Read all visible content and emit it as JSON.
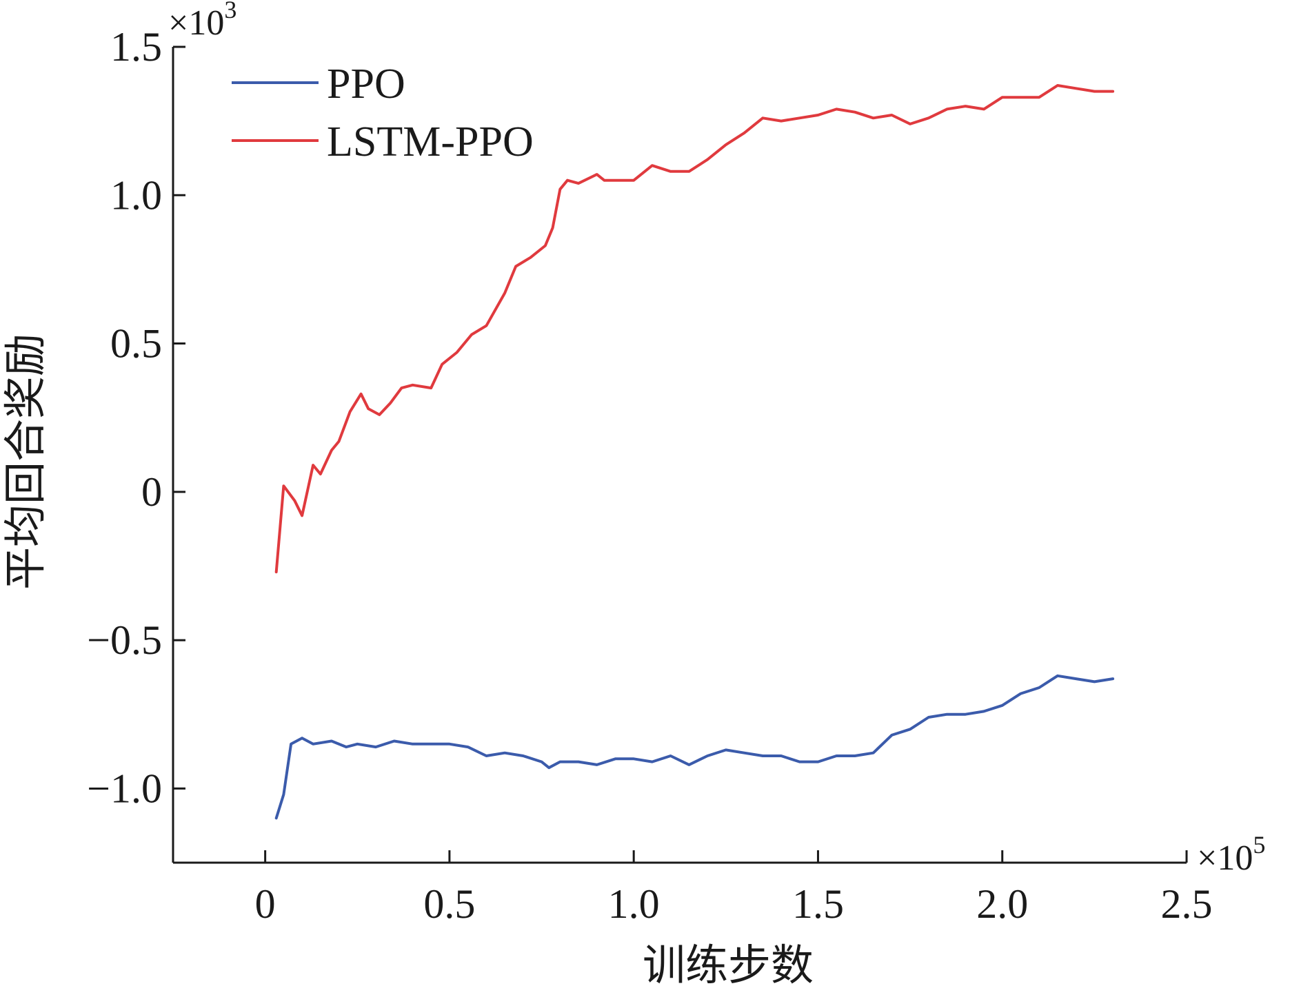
{
  "chart_data": {
    "type": "line",
    "title": "",
    "xlabel": "训练步数",
    "ylabel": "平均回合奖励",
    "x_multiplier": {
      "base": "×10",
      "exp": "5"
    },
    "y_multiplier": {
      "base": "×10",
      "exp": "3"
    },
    "xlim": [
      -0.25,
      2.5
    ],
    "ylim": [
      -1.25,
      1.5
    ],
    "xticks": [
      0,
      0.5,
      1.0,
      1.5,
      2.0,
      2.5
    ],
    "xtick_labels": [
      "0",
      "0.5",
      "1.0",
      "1.5",
      "2.0",
      "2.5"
    ],
    "yticks": [
      -1.0,
      -0.5,
      0,
      0.5,
      1.0,
      1.5
    ],
    "ytick_labels": [
      "−1.0",
      "−0.5",
      "0",
      "0.5",
      "1.0",
      "1.5"
    ],
    "grid": false,
    "legend_position": "top-left",
    "series": [
      {
        "name": "PPO",
        "color": "#3b5bab",
        "points": [
          [
            0.03,
            -1.1
          ],
          [
            0.05,
            -1.02
          ],
          [
            0.07,
            -0.85
          ],
          [
            0.1,
            -0.83
          ],
          [
            0.13,
            -0.85
          ],
          [
            0.18,
            -0.84
          ],
          [
            0.22,
            -0.86
          ],
          [
            0.25,
            -0.85
          ],
          [
            0.3,
            -0.86
          ],
          [
            0.35,
            -0.84
          ],
          [
            0.4,
            -0.85
          ],
          [
            0.45,
            -0.85
          ],
          [
            0.5,
            -0.85
          ],
          [
            0.55,
            -0.86
          ],
          [
            0.6,
            -0.89
          ],
          [
            0.65,
            -0.88
          ],
          [
            0.7,
            -0.89
          ],
          [
            0.75,
            -0.91
          ],
          [
            0.77,
            -0.93
          ],
          [
            0.8,
            -0.91
          ],
          [
            0.85,
            -0.91
          ],
          [
            0.9,
            -0.92
          ],
          [
            0.95,
            -0.9
          ],
          [
            1.0,
            -0.9
          ],
          [
            1.05,
            -0.91
          ],
          [
            1.1,
            -0.89
          ],
          [
            1.15,
            -0.92
          ],
          [
            1.2,
            -0.89
          ],
          [
            1.25,
            -0.87
          ],
          [
            1.3,
            -0.88
          ],
          [
            1.35,
            -0.89
          ],
          [
            1.4,
            -0.89
          ],
          [
            1.45,
            -0.91
          ],
          [
            1.5,
            -0.91
          ],
          [
            1.55,
            -0.89
          ],
          [
            1.6,
            -0.89
          ],
          [
            1.65,
            -0.88
          ],
          [
            1.7,
            -0.82
          ],
          [
            1.75,
            -0.8
          ],
          [
            1.8,
            -0.76
          ],
          [
            1.85,
            -0.75
          ],
          [
            1.9,
            -0.75
          ],
          [
            1.95,
            -0.74
          ],
          [
            2.0,
            -0.72
          ],
          [
            2.05,
            -0.68
          ],
          [
            2.1,
            -0.66
          ],
          [
            2.15,
            -0.62
          ],
          [
            2.2,
            -0.63
          ],
          [
            2.25,
            -0.64
          ],
          [
            2.3,
            -0.63
          ]
        ]
      },
      {
        "name": "LSTM-PPO",
        "color": "#e03a3e",
        "points": [
          [
            0.03,
            -0.27
          ],
          [
            0.05,
            0.02
          ],
          [
            0.08,
            -0.03
          ],
          [
            0.1,
            -0.08
          ],
          [
            0.13,
            0.09
          ],
          [
            0.15,
            0.06
          ],
          [
            0.18,
            0.14
          ],
          [
            0.2,
            0.17
          ],
          [
            0.23,
            0.27
          ],
          [
            0.26,
            0.33
          ],
          [
            0.28,
            0.28
          ],
          [
            0.31,
            0.26
          ],
          [
            0.34,
            0.3
          ],
          [
            0.37,
            0.35
          ],
          [
            0.4,
            0.36
          ],
          [
            0.45,
            0.35
          ],
          [
            0.48,
            0.43
          ],
          [
            0.52,
            0.47
          ],
          [
            0.56,
            0.53
          ],
          [
            0.6,
            0.56
          ],
          [
            0.65,
            0.67
          ],
          [
            0.68,
            0.76
          ],
          [
            0.72,
            0.79
          ],
          [
            0.76,
            0.83
          ],
          [
            0.78,
            0.89
          ],
          [
            0.8,
            1.02
          ],
          [
            0.82,
            1.05
          ],
          [
            0.85,
            1.04
          ],
          [
            0.9,
            1.07
          ],
          [
            0.92,
            1.05
          ],
          [
            0.95,
            1.05
          ],
          [
            1.0,
            1.05
          ],
          [
            1.05,
            1.1
          ],
          [
            1.1,
            1.08
          ],
          [
            1.15,
            1.08
          ],
          [
            1.2,
            1.12
          ],
          [
            1.25,
            1.17
          ],
          [
            1.3,
            1.21
          ],
          [
            1.35,
            1.26
          ],
          [
            1.4,
            1.25
          ],
          [
            1.45,
            1.26
          ],
          [
            1.5,
            1.27
          ],
          [
            1.55,
            1.29
          ],
          [
            1.6,
            1.28
          ],
          [
            1.65,
            1.26
          ],
          [
            1.7,
            1.27
          ],
          [
            1.75,
            1.24
          ],
          [
            1.8,
            1.26
          ],
          [
            1.85,
            1.29
          ],
          [
            1.9,
            1.3
          ],
          [
            1.95,
            1.29
          ],
          [
            2.0,
            1.33
          ],
          [
            2.05,
            1.33
          ],
          [
            2.1,
            1.33
          ],
          [
            2.15,
            1.37
          ],
          [
            2.2,
            1.36
          ],
          [
            2.25,
            1.35
          ],
          [
            2.3,
            1.35
          ]
        ]
      }
    ]
  }
}
